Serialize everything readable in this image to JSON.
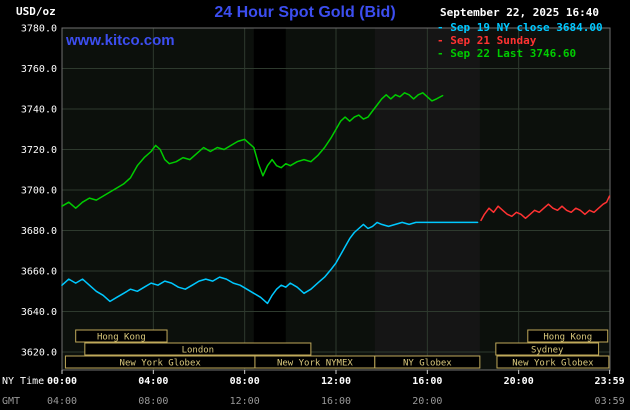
{
  "header": {
    "unit": "USD/oz",
    "title": "24 Hour Spot Gold (Bid)",
    "datetime": "September 22, 2025 16:40",
    "watermark": "www.kitco.com"
  },
  "colors": {
    "title_blue": "#3c4ef0",
    "grid": "#2e3a2e",
    "plot_bg": "#0c100c",
    "plot_border": "#707070",
    "session_border": "#bfa95a",
    "session_text": "#d9c87c",
    "axis_text": "#ffffff",
    "gmt_text": "#999999",
    "tick": "#cccccc"
  },
  "chart_data": {
    "type": "line",
    "title": "24 Hour Spot Gold (Bid)",
    "ylabel": "USD/oz",
    "xlabel_primary": "NY Time",
    "xlabel_secondary": "GMT",
    "xlim": [
      0,
      24
    ],
    "ylim": [
      3620,
      3780
    ],
    "y_grid_step": 20,
    "y_ticks": [
      {
        "value": 3780,
        "label": "3780.0"
      },
      {
        "value": 3760,
        "label": "3760.0"
      },
      {
        "value": 3740,
        "label": "3740.0"
      },
      {
        "value": 3720,
        "label": "3720.0"
      },
      {
        "value": 3700,
        "label": "3700.0"
      },
      {
        "value": 3680,
        "label": "3680.0"
      },
      {
        "value": 3660,
        "label": "3660.0"
      },
      {
        "value": 3640,
        "label": "3640.0"
      },
      {
        "value": 3620,
        "label": "3620.0"
      }
    ],
    "x_ticks": [
      {
        "h": 0,
        "ny": "00:00",
        "gmt": "04:00"
      },
      {
        "h": 4,
        "ny": "04:00",
        "gmt": "08:00"
      },
      {
        "h": 8,
        "ny": "08:00",
        "gmt": "12:00"
      },
      {
        "h": 12,
        "ny": "12:00",
        "gmt": "16:00"
      },
      {
        "h": 16,
        "ny": "16:00",
        "gmt": "20:00"
      },
      {
        "h": 20,
        "ny": "20:00",
        "gmt": ""
      },
      {
        "h": 23.983,
        "ny": "23:59",
        "gmt": "03:59"
      }
    ],
    "legend": [
      {
        "id": "sep19",
        "label": "- Sep 19 NY close 3684.00",
        "color": "#00c8ff"
      },
      {
        "id": "sep21",
        "label": "- Sep 21 Sunday",
        "color": "#ff3232"
      },
      {
        "id": "sep22",
        "label": "- Sep 22 Last 3746.60",
        "color": "#00cc00"
      }
    ],
    "bands": [
      {
        "start": 8.4,
        "end": 9.8,
        "color": "#000000"
      },
      {
        "start": 13.7,
        "end": 18.3,
        "color": "#151515"
      }
    ],
    "sessions": [
      {
        "row": 0,
        "label": "Hong Kong",
        "start": 0.6,
        "end": 4.6
      },
      {
        "row": 0,
        "label": "Hong Kong",
        "start": 20.4,
        "end": 23.9
      },
      {
        "row": 1,
        "label": "London",
        "start": 1.0,
        "end": 10.9
      },
      {
        "row": 1,
        "label": "Sydney",
        "start": 19.0,
        "end": 23.5
      },
      {
        "row": 2,
        "label": "New York Globex",
        "start": 0.15,
        "end": 8.45
      },
      {
        "row": 2,
        "label": "New York NYMEX",
        "start": 8.45,
        "end": 13.7
      },
      {
        "row": 2,
        "label": "NY Globex",
        "start": 13.7,
        "end": 18.3
      },
      {
        "row": 2,
        "label": "New York Globex",
        "start": 19.05,
        "end": 23.95
      }
    ],
    "series": [
      {
        "id": "sep19",
        "name": "Sep 19 NY close",
        "color": "#00c8ff",
        "close": 3684.0,
        "points": [
          [
            0,
            3653
          ],
          [
            0.3,
            3656
          ],
          [
            0.6,
            3654
          ],
          [
            0.9,
            3656
          ],
          [
            1.2,
            3653
          ],
          [
            1.5,
            3650
          ],
          [
            1.8,
            3648
          ],
          [
            2.1,
            3645
          ],
          [
            2.4,
            3647
          ],
          [
            2.7,
            3649
          ],
          [
            3.0,
            3651
          ],
          [
            3.3,
            3650
          ],
          [
            3.6,
            3652
          ],
          [
            3.9,
            3654
          ],
          [
            4.2,
            3653
          ],
          [
            4.5,
            3655
          ],
          [
            4.8,
            3654
          ],
          [
            5.1,
            3652
          ],
          [
            5.4,
            3651
          ],
          [
            5.7,
            3653
          ],
          [
            6.0,
            3655
          ],
          [
            6.3,
            3656
          ],
          [
            6.6,
            3655
          ],
          [
            6.9,
            3657
          ],
          [
            7.2,
            3656
          ],
          [
            7.5,
            3654
          ],
          [
            7.8,
            3653
          ],
          [
            8.1,
            3651
          ],
          [
            8.4,
            3649
          ],
          [
            8.7,
            3647
          ],
          [
            9.0,
            3644
          ],
          [
            9.2,
            3648
          ],
          [
            9.4,
            3651
          ],
          [
            9.6,
            3653
          ],
          [
            9.8,
            3652
          ],
          [
            10.0,
            3654
          ],
          [
            10.3,
            3652
          ],
          [
            10.6,
            3649
          ],
          [
            10.9,
            3651
          ],
          [
            11.2,
            3654
          ],
          [
            11.5,
            3657
          ],
          [
            11.8,
            3661
          ],
          [
            12.0,
            3664
          ],
          [
            12.2,
            3668
          ],
          [
            12.4,
            3672
          ],
          [
            12.6,
            3676
          ],
          [
            12.8,
            3679
          ],
          [
            13.0,
            3681
          ],
          [
            13.2,
            3683
          ],
          [
            13.4,
            3681
          ],
          [
            13.6,
            3682
          ],
          [
            13.8,
            3684
          ],
          [
            14.0,
            3683
          ],
          [
            14.3,
            3682
          ],
          [
            14.6,
            3683
          ],
          [
            14.9,
            3684
          ],
          [
            15.2,
            3683
          ],
          [
            15.5,
            3684
          ],
          [
            15.8,
            3684
          ],
          [
            16.1,
            3684
          ],
          [
            16.4,
            3684
          ],
          [
            16.7,
            3684
          ],
          [
            17.0,
            3684
          ],
          [
            17.3,
            3684
          ],
          [
            17.6,
            3684
          ],
          [
            17.9,
            3684
          ],
          [
            18.2,
            3684
          ]
        ]
      },
      {
        "id": "sep21",
        "name": "Sep 21 Sunday",
        "color": "#ff3232",
        "points": [
          [
            18.35,
            3685
          ],
          [
            18.5,
            3688
          ],
          [
            18.7,
            3691
          ],
          [
            18.9,
            3689
          ],
          [
            19.1,
            3692
          ],
          [
            19.3,
            3690
          ],
          [
            19.5,
            3688
          ],
          [
            19.7,
            3687
          ],
          [
            19.9,
            3689
          ],
          [
            20.1,
            3688
          ],
          [
            20.3,
            3686
          ],
          [
            20.5,
            3688
          ],
          [
            20.7,
            3690
          ],
          [
            20.9,
            3689
          ],
          [
            21.1,
            3691
          ],
          [
            21.3,
            3693
          ],
          [
            21.5,
            3691
          ],
          [
            21.7,
            3690
          ],
          [
            21.9,
            3692
          ],
          [
            22.1,
            3690
          ],
          [
            22.3,
            3689
          ],
          [
            22.5,
            3691
          ],
          [
            22.7,
            3690
          ],
          [
            22.9,
            3688
          ],
          [
            23.1,
            3690
          ],
          [
            23.3,
            3689
          ],
          [
            23.5,
            3691
          ],
          [
            23.7,
            3693
          ],
          [
            23.85,
            3694
          ],
          [
            23.98,
            3697
          ]
        ]
      },
      {
        "id": "sep22",
        "name": "Sep 22",
        "color": "#00cc00",
        "last": 3746.6,
        "points": [
          [
            0,
            3692
          ],
          [
            0.3,
            3694
          ],
          [
            0.6,
            3691
          ],
          [
            0.9,
            3694
          ],
          [
            1.2,
            3696
          ],
          [
            1.5,
            3695
          ],
          [
            1.8,
            3697
          ],
          [
            2.1,
            3699
          ],
          [
            2.4,
            3701
          ],
          [
            2.7,
            3703
          ],
          [
            3.0,
            3706
          ],
          [
            3.3,
            3712
          ],
          [
            3.6,
            3716
          ],
          [
            3.9,
            3719
          ],
          [
            4.1,
            3722
          ],
          [
            4.3,
            3720
          ],
          [
            4.5,
            3715
          ],
          [
            4.7,
            3713
          ],
          [
            5.0,
            3714
          ],
          [
            5.3,
            3716
          ],
          [
            5.6,
            3715
          ],
          [
            5.9,
            3718
          ],
          [
            6.2,
            3721
          ],
          [
            6.5,
            3719
          ],
          [
            6.8,
            3721
          ],
          [
            7.1,
            3720
          ],
          [
            7.4,
            3722
          ],
          [
            7.7,
            3724
          ],
          [
            8.0,
            3725
          ],
          [
            8.2,
            3723
          ],
          [
            8.4,
            3721
          ],
          [
            8.6,
            3713
          ],
          [
            8.8,
            3707
          ],
          [
            9.0,
            3712
          ],
          [
            9.2,
            3715
          ],
          [
            9.4,
            3712
          ],
          [
            9.6,
            3711
          ],
          [
            9.8,
            3713
          ],
          [
            10.0,
            3712
          ],
          [
            10.3,
            3714
          ],
          [
            10.6,
            3715
          ],
          [
            10.9,
            3714
          ],
          [
            11.2,
            3717
          ],
          [
            11.5,
            3721
          ],
          [
            11.8,
            3726
          ],
          [
            12.0,
            3730
          ],
          [
            12.2,
            3734
          ],
          [
            12.4,
            3736
          ],
          [
            12.6,
            3734
          ],
          [
            12.8,
            3736
          ],
          [
            13.0,
            3737
          ],
          [
            13.2,
            3735
          ],
          [
            13.4,
            3736
          ],
          [
            13.6,
            3739
          ],
          [
            13.8,
            3742
          ],
          [
            14.0,
            3745
          ],
          [
            14.2,
            3747
          ],
          [
            14.4,
            3745
          ],
          [
            14.6,
            3747
          ],
          [
            14.8,
            3746
          ],
          [
            15.0,
            3748
          ],
          [
            15.2,
            3747
          ],
          [
            15.4,
            3745
          ],
          [
            15.6,
            3747
          ],
          [
            15.8,
            3748
          ],
          [
            16.0,
            3746
          ],
          [
            16.2,
            3744
          ],
          [
            16.4,
            3745
          ],
          [
            16.67,
            3746.6
          ]
        ]
      }
    ]
  }
}
